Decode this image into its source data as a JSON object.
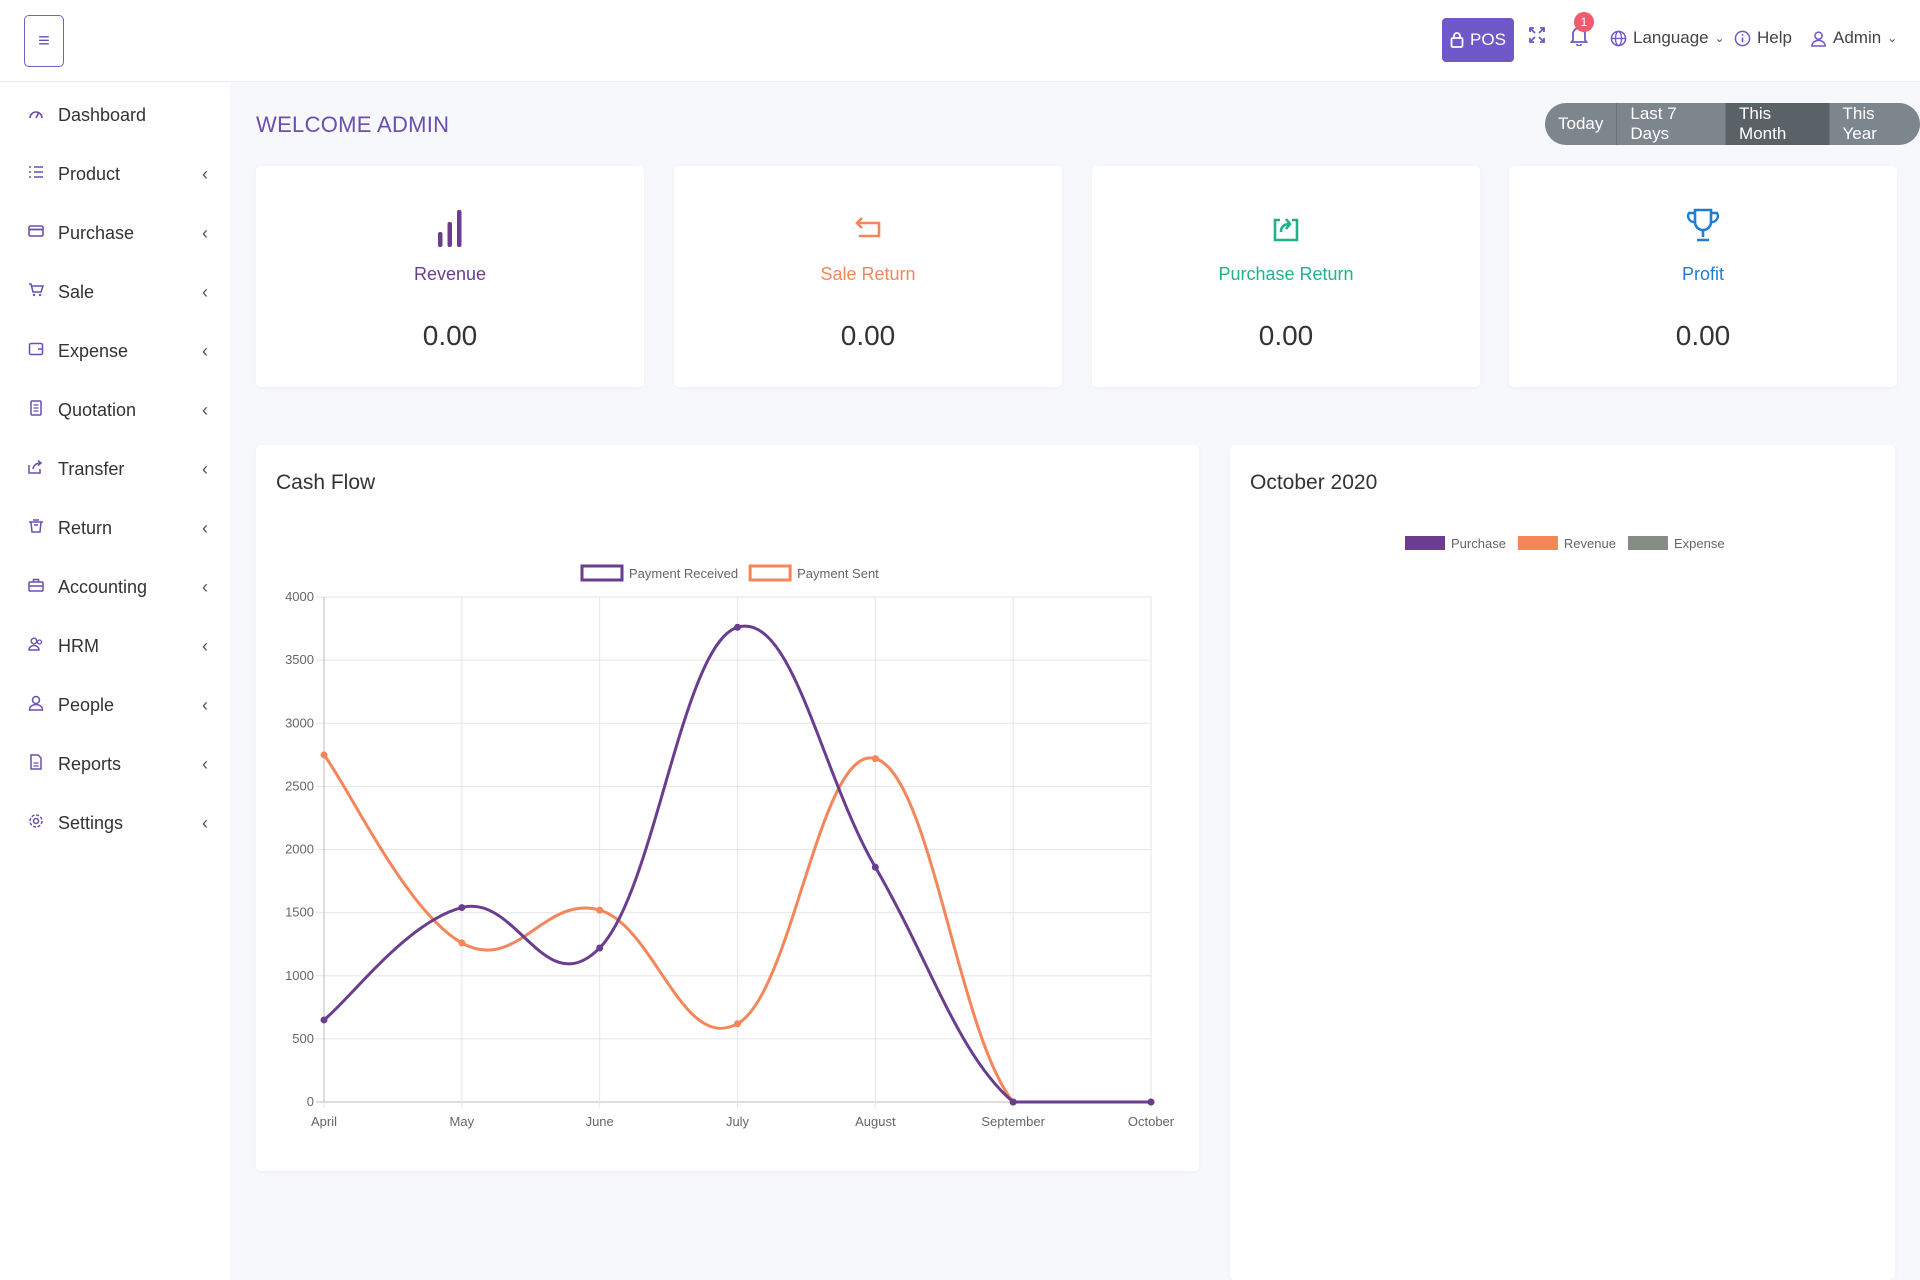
{
  "topbar": {
    "pos_label": "POS",
    "notif_count": "1",
    "language_label": "Language",
    "help_label": "Help",
    "user_label": "Admin"
  },
  "sidebar": {
    "items": [
      {
        "label": "Dashboard",
        "icon": "dashboard-icon",
        "has_chevron": false
      },
      {
        "label": "Product",
        "icon": "list-icon",
        "has_chevron": true
      },
      {
        "label": "Purchase",
        "icon": "card-icon",
        "has_chevron": true
      },
      {
        "label": "Sale",
        "icon": "cart-icon",
        "has_chevron": true
      },
      {
        "label": "Expense",
        "icon": "wallet-icon",
        "has_chevron": true
      },
      {
        "label": "Quotation",
        "icon": "document-icon",
        "has_chevron": true
      },
      {
        "label": "Transfer",
        "icon": "share-icon",
        "has_chevron": true
      },
      {
        "label": "Return",
        "icon": "basket-icon",
        "has_chevron": true
      },
      {
        "label": "Accounting",
        "icon": "briefcase-icon",
        "has_chevron": true
      },
      {
        "label": "HRM",
        "icon": "users-icon",
        "has_chevron": true
      },
      {
        "label": "People",
        "icon": "user-icon",
        "has_chevron": true
      },
      {
        "label": "Reports",
        "icon": "file-icon",
        "has_chevron": true
      },
      {
        "label": "Settings",
        "icon": "gear-icon",
        "has_chevron": true
      }
    ]
  },
  "main": {
    "welcome": "WELCOME ADMIN",
    "ranges": [
      {
        "label": "Today",
        "active": false
      },
      {
        "label": "Last 7 Days",
        "active": false
      },
      {
        "label": "This Month",
        "active": true
      },
      {
        "label": "This Year",
        "active": false
      }
    ],
    "cards": [
      {
        "label": "Revenue",
        "value": "0.00",
        "color": "#6a3d8f",
        "icon": "bar-chart-icon"
      },
      {
        "label": "Sale Return",
        "value": "0.00",
        "color": "#f4865a",
        "icon": "return-arrow-icon"
      },
      {
        "label": "Purchase Return",
        "value": "0.00",
        "color": "#1fb38a",
        "icon": "purchase-return-icon"
      },
      {
        "label": "Profit",
        "value": "0.00",
        "color": "#1e7ed6",
        "icon": "trophy-icon"
      }
    ],
    "cashflow_title": "Cash Flow",
    "month_title": "October 2020"
  },
  "chart_data": [
    {
      "type": "line",
      "title": "Cash Flow",
      "categories": [
        "April",
        "May",
        "June",
        "July",
        "August",
        "September",
        "October"
      ],
      "ylim": [
        0,
        4000
      ],
      "yticks": [
        0,
        500,
        1000,
        1500,
        2000,
        2500,
        3000,
        3500,
        4000
      ],
      "grid": true,
      "legend": "top-center",
      "series": [
        {
          "name": "Payment Received",
          "color": "#6a3d8f",
          "values": [
            650,
            1540,
            1220,
            3760,
            1860,
            0,
            0
          ]
        },
        {
          "name": "Payment Sent",
          "color": "#f4865a",
          "values": [
            2750,
            1260,
            1520,
            620,
            2720,
            0,
            0
          ]
        }
      ]
    },
    {
      "type": "bar",
      "title": "October 2020",
      "legend": "top-center",
      "series": [
        {
          "name": "Purchase",
          "color": "#6a3d8f",
          "values": []
        },
        {
          "name": "Revenue",
          "color": "#f4865a",
          "values": []
        },
        {
          "name": "Expense",
          "color": "#858c85",
          "values": []
        }
      ]
    }
  ]
}
